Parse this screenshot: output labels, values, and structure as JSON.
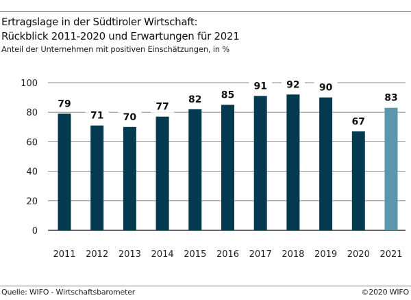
{
  "header": {
    "title_line1": "Ertragslage in der Südtiroler Wirtschaft:",
    "title_line2": "Rückblick 2011-2020 und Erwartungen für 2021",
    "subtitle": "Anteil der Unternehmen mit positiven Einschätzungen, in %"
  },
  "footer": {
    "source": "Quelle: WIFO - Wirtschaftsbarometer",
    "copyright": "©2020 WIFO"
  },
  "colors": {
    "actual": "#043a4f",
    "forecast": "#5b96ad",
    "grid": "#8a8a8a",
    "axis": "#333333"
  },
  "chart_data": {
    "type": "bar",
    "title": "Ertragslage in der Südtiroler Wirtschaft: Rückblick 2011-2020 und Erwartungen für 2021",
    "subtitle": "Anteil der Unternehmen mit positiven Einschätzungen, in %",
    "xlabel": "",
    "ylabel": "",
    "categories": [
      "2011",
      "2012",
      "2013",
      "2014",
      "2015",
      "2016",
      "2017",
      "2018",
      "2019",
      "2020",
      "2021"
    ],
    "values": [
      79,
      71,
      70,
      77,
      82,
      85,
      91,
      92,
      90,
      67,
      83
    ],
    "series_type": [
      "actual",
      "actual",
      "actual",
      "actual",
      "actual",
      "actual",
      "actual",
      "actual",
      "actual",
      "actual",
      "forecast"
    ],
    "ylim": [
      0,
      100
    ],
    "yticks": [
      0,
      20,
      40,
      60,
      80,
      100
    ],
    "grid": true,
    "legend": "none",
    "data_labels": true
  }
}
